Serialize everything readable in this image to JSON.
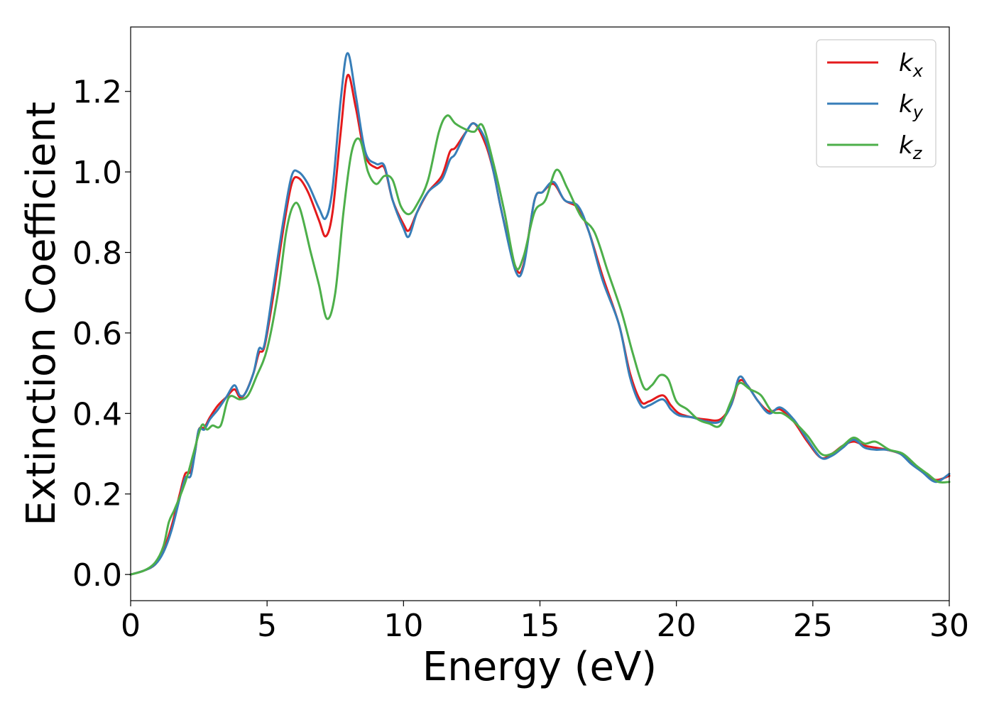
{
  "chart_data": {
    "type": "line",
    "title": "",
    "xlabel": "Energy (eV)",
    "ylabel": "Extinction Coefficient",
    "xlim": [
      0,
      30
    ],
    "ylim": [
      -0.065,
      1.36
    ],
    "xticks": [
      0,
      5,
      10,
      15,
      20,
      25,
      30
    ],
    "yticks": [
      0.0,
      0.2,
      0.4,
      0.6,
      0.8,
      1.0,
      1.2
    ],
    "ytick_labels": [
      "0.0",
      "0.2",
      "0.4",
      "0.6",
      "0.8",
      "1.0",
      "1.2"
    ],
    "grid": false,
    "legend_position": "top-right",
    "series": [
      {
        "name": "k_x",
        "symbol": "k",
        "subscript": "x",
        "color": "#e41a1c",
        "x": [
          0,
          0.5,
          0.9,
          1.2,
          1.5,
          1.8,
          2.0,
          2.2,
          2.35,
          2.5,
          2.7,
          2.9,
          3.2,
          3.5,
          3.8,
          4.0,
          4.2,
          4.5,
          4.7,
          4.9,
          5.2,
          5.6,
          5.9,
          6.15,
          6.5,
          6.9,
          7.15,
          7.4,
          7.7,
          7.95,
          8.25,
          8.6,
          9.0,
          9.3,
          9.6,
          10.0,
          10.2,
          10.5,
          10.9,
          11.4,
          11.7,
          11.9,
          12.3,
          12.6,
          13.0,
          13.3,
          13.6,
          14.1,
          14.4,
          14.8,
          15.1,
          15.5,
          15.9,
          16.4,
          16.8,
          17.3,
          17.9,
          18.3,
          18.7,
          19.0,
          19.5,
          19.8,
          20.1,
          20.6,
          21.1,
          21.6,
          22.0,
          22.3,
          22.6,
          23.0,
          23.4,
          23.8,
          24.3,
          24.8,
          25.3,
          25.7,
          26.1,
          26.5,
          26.9,
          27.3,
          27.7,
          28.2,
          28.6,
          29.0,
          29.5,
          30.0
        ],
        "values": [
          0.0,
          0.01,
          0.025,
          0.06,
          0.12,
          0.2,
          0.25,
          0.255,
          0.3,
          0.36,
          0.365,
          0.39,
          0.42,
          0.44,
          0.46,
          0.44,
          0.45,
          0.5,
          0.55,
          0.565,
          0.68,
          0.86,
          0.97,
          0.985,
          0.95,
          0.88,
          0.84,
          0.9,
          1.1,
          1.24,
          1.16,
          1.04,
          1.01,
          1.01,
          0.93,
          0.87,
          0.855,
          0.9,
          0.95,
          0.99,
          1.05,
          1.06,
          1.1,
          1.12,
          1.07,
          1.0,
          0.9,
          0.765,
          0.77,
          0.93,
          0.95,
          0.97,
          0.93,
          0.91,
          0.85,
          0.74,
          0.62,
          0.5,
          0.43,
          0.43,
          0.445,
          0.42,
          0.4,
          0.39,
          0.385,
          0.385,
          0.42,
          0.48,
          0.47,
          0.43,
          0.405,
          0.41,
          0.38,
          0.33,
          0.29,
          0.3,
          0.32,
          0.33,
          0.32,
          0.315,
          0.31,
          0.3,
          0.28,
          0.255,
          0.235,
          0.245
        ]
      },
      {
        "name": "k_y",
        "symbol": "k",
        "subscript": "y",
        "color": "#377eb8",
        "x": [
          0,
          0.5,
          0.9,
          1.2,
          1.5,
          1.8,
          2.0,
          2.2,
          2.35,
          2.5,
          2.7,
          2.9,
          3.2,
          3.5,
          3.8,
          4.0,
          4.2,
          4.5,
          4.7,
          4.9,
          5.2,
          5.6,
          5.9,
          6.15,
          6.5,
          6.9,
          7.15,
          7.4,
          7.7,
          7.95,
          8.25,
          8.6,
          9.0,
          9.3,
          9.6,
          10.0,
          10.2,
          10.5,
          10.9,
          11.4,
          11.7,
          11.9,
          12.3,
          12.6,
          13.0,
          13.3,
          13.6,
          14.1,
          14.4,
          14.8,
          15.1,
          15.5,
          15.9,
          16.4,
          16.8,
          17.3,
          17.9,
          18.3,
          18.7,
          19.0,
          19.5,
          19.8,
          20.1,
          20.6,
          21.1,
          21.6,
          22.0,
          22.3,
          22.6,
          23.0,
          23.4,
          23.8,
          24.3,
          24.8,
          25.3,
          25.7,
          26.1,
          26.5,
          26.9,
          27.3,
          27.7,
          28.2,
          28.6,
          29.0,
          29.5,
          30.0
        ],
        "values": [
          0.0,
          0.01,
          0.025,
          0.055,
          0.11,
          0.19,
          0.24,
          0.245,
          0.3,
          0.36,
          0.36,
          0.385,
          0.41,
          0.44,
          0.47,
          0.445,
          0.45,
          0.5,
          0.56,
          0.57,
          0.7,
          0.88,
          0.99,
          1.0,
          0.97,
          0.91,
          0.885,
          0.96,
          1.18,
          1.295,
          1.19,
          1.05,
          1.02,
          1.015,
          0.93,
          0.86,
          0.84,
          0.9,
          0.95,
          0.98,
          1.03,
          1.045,
          1.1,
          1.12,
          1.08,
          1.0,
          0.9,
          0.755,
          0.765,
          0.93,
          0.95,
          0.975,
          0.93,
          0.915,
          0.85,
          0.73,
          0.62,
          0.49,
          0.42,
          0.42,
          0.435,
          0.41,
          0.395,
          0.39,
          0.38,
          0.38,
          0.42,
          0.49,
          0.47,
          0.43,
          0.4,
          0.415,
          0.385,
          0.335,
          0.29,
          0.295,
          0.315,
          0.335,
          0.315,
          0.31,
          0.31,
          0.3,
          0.275,
          0.255,
          0.23,
          0.25
        ]
      },
      {
        "name": "k_z",
        "symbol": "k",
        "subscript": "z",
        "color": "#4daf4a",
        "x": [
          0,
          0.5,
          0.9,
          1.2,
          1.4,
          1.6,
          1.9,
          2.1,
          2.3,
          2.6,
          2.8,
          3.0,
          3.3,
          3.6,
          4.0,
          4.3,
          4.6,
          5.0,
          5.4,
          5.7,
          5.95,
          6.2,
          6.6,
          6.9,
          7.2,
          7.5,
          7.8,
          8.1,
          8.4,
          8.7,
          9.0,
          9.3,
          9.6,
          9.9,
          10.2,
          10.5,
          10.9,
          11.3,
          11.6,
          11.9,
          12.3,
          12.6,
          12.9,
          13.3,
          13.7,
          14.1,
          14.4,
          14.8,
          15.2,
          15.6,
          16.0,
          16.5,
          17.0,
          17.5,
          18.0,
          18.4,
          18.8,
          19.1,
          19.4,
          19.7,
          20.0,
          20.4,
          20.8,
          21.2,
          21.6,
          22.0,
          22.3,
          22.7,
          23.1,
          23.5,
          23.9,
          24.3,
          24.8,
          25.3,
          25.7,
          26.1,
          26.5,
          26.9,
          27.3,
          27.8,
          28.3,
          28.8,
          29.2,
          29.6,
          30.0
        ],
        "values": [
          0.0,
          0.01,
          0.03,
          0.07,
          0.13,
          0.16,
          0.21,
          0.25,
          0.3,
          0.37,
          0.36,
          0.37,
          0.37,
          0.44,
          0.435,
          0.445,
          0.49,
          0.56,
          0.7,
          0.85,
          0.915,
          0.91,
          0.8,
          0.72,
          0.635,
          0.7,
          0.9,
          1.05,
          1.08,
          1.0,
          0.97,
          0.99,
          0.98,
          0.915,
          0.895,
          0.92,
          0.98,
          1.1,
          1.14,
          1.12,
          1.105,
          1.1,
          1.115,
          1.02,
          0.9,
          0.765,
          0.79,
          0.9,
          0.93,
          1.005,
          0.96,
          0.89,
          0.85,
          0.75,
          0.65,
          0.55,
          0.465,
          0.47,
          0.495,
          0.485,
          0.43,
          0.41,
          0.385,
          0.375,
          0.37,
          0.43,
          0.475,
          0.46,
          0.445,
          0.405,
          0.4,
          0.38,
          0.345,
          0.3,
          0.3,
          0.32,
          0.34,
          0.325,
          0.33,
          0.31,
          0.3,
          0.27,
          0.25,
          0.23,
          0.23
        ]
      }
    ]
  }
}
